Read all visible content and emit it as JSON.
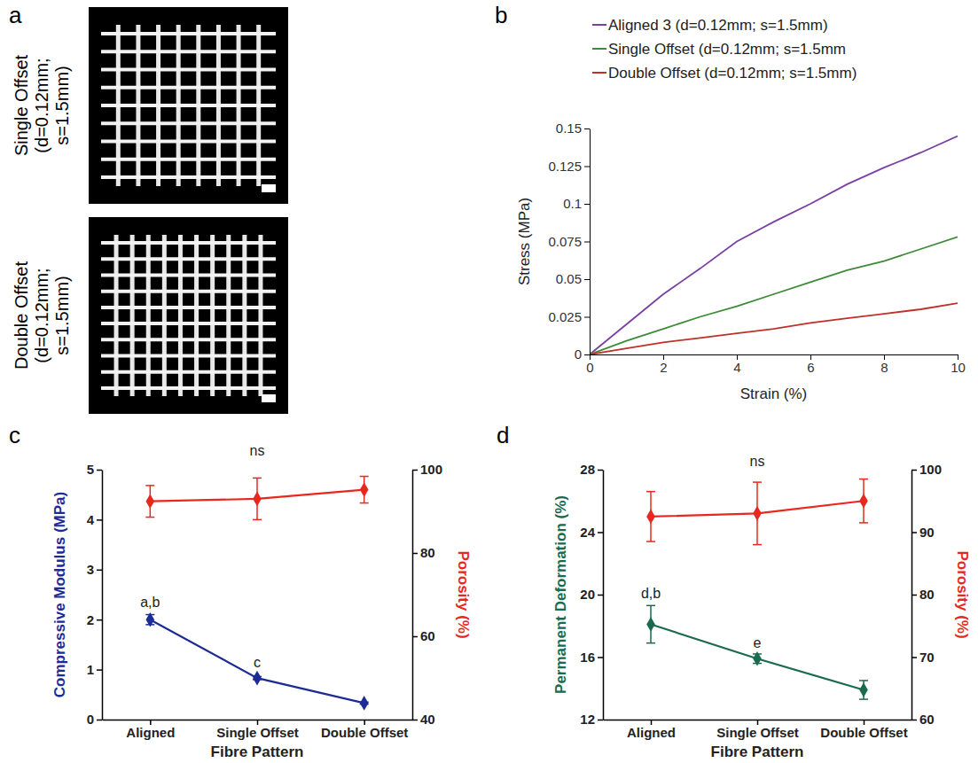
{
  "chart_data": [
    {
      "type": "image",
      "panel_label": "a",
      "labels": [
        "Single Offset (d=0.12mm; s=1.5mm)",
        "Double Offset (d=0.12mm; s=1.5mm)"
      ]
    },
    {
      "type": "line",
      "panel_label": "b",
      "x_label": "Strain (%)",
      "y_label": "Stress (MPa)",
      "x": [
        0,
        1,
        2,
        3,
        4,
        5,
        6,
        7,
        8,
        9,
        10
      ],
      "xlim": [
        0,
        10
      ],
      "xticks": [
        0,
        2,
        4,
        6,
        8,
        10
      ],
      "ylim": [
        0,
        0.15
      ],
      "yticks": [
        0,
        0.025,
        0.05,
        0.075,
        0.1,
        0.125,
        0.15
      ],
      "grid": false,
      "legend": "top",
      "series": [
        {
          "name": "Aligned 3 (d=0.12mm; s=1.5mm)",
          "color": "#7a3fa3",
          "line_style": "solid",
          "values": [
            0,
            0.02,
            0.04,
            0.057,
            0.075,
            0.088,
            0.1,
            0.113,
            0.124,
            0.134,
            0.145
          ]
        },
        {
          "name": "Single Offset (d=0.12mm; s=1.5mm",
          "color": "#3d8b37",
          "line_style": "solid",
          "values": [
            0,
            0.009,
            0.017,
            0.025,
            0.032,
            0.04,
            0.048,
            0.056,
            0.062,
            0.07,
            0.078
          ]
        },
        {
          "name": "Double Offset (d=0.12mm; s=1.5mm)",
          "color": "#c0302b",
          "line_style": "solid",
          "values": [
            0,
            0.004,
            0.008,
            0.011,
            0.014,
            0.017,
            0.021,
            0.024,
            0.027,
            0.03,
            0.034
          ]
        }
      ]
    },
    {
      "type": "line",
      "panel_label": "c",
      "x_label": "Fibre Pattern",
      "y_label": "Compressive Modulus (MPa)",
      "y2_label": "Porosity (%)",
      "categories": [
        "Aligned",
        "Single Offset",
        "Double Offset"
      ],
      "ylim": [
        0,
        5
      ],
      "yticks": [
        0,
        1,
        2,
        3,
        4,
        5
      ],
      "y2lim": [
        40,
        100
      ],
      "y2ticks": [
        40,
        60,
        80,
        100
      ],
      "grid": false,
      "series": [
        {
          "color": "#1d2b96",
          "marker": "diamond",
          "line_style": "solid",
          "values": [
            2.0,
            0.83,
            0.33
          ],
          "errors": [
            0.1,
            0.03,
            0.02
          ]
        },
        {
          "color": "#e8281e",
          "marker": "diamond",
          "line_style": "solid",
          "axis": "y2",
          "values": [
            92.4,
            93.0,
            95.2
          ],
          "errors": [
            3.8,
            5.0,
            3.2
          ]
        }
      ],
      "annotations": [
        {
          "text": "a,b",
          "x": "Aligned",
          "y": 2.25
        },
        {
          "text": "c",
          "x": "Single Offset",
          "y": 1.05
        },
        {
          "text": "ns",
          "x": "Single Offset",
          "y": 103.5,
          "axis": "y2"
        }
      ]
    },
    {
      "type": "line",
      "panel_label": "d",
      "x_label": "Fibre Pattern",
      "y_label": "Permanent Deformation (%)",
      "y2_label": "Porosity (%)",
      "categories": [
        "Aligned",
        "Single Offset",
        "Double Offset"
      ],
      "ylim": [
        12,
        28
      ],
      "yticks": [
        12,
        16,
        20,
        24,
        28
      ],
      "y2lim": [
        60,
        100
      ],
      "y2ticks": [
        60,
        70,
        80,
        90,
        100
      ],
      "grid": false,
      "series": [
        {
          "color": "#1a6b4d",
          "marker": "diamond",
          "line_style": "solid",
          "values": [
            18.1,
            15.9,
            13.9
          ],
          "errors": [
            1.2,
            0.3,
            0.6
          ]
        },
        {
          "color": "#e8281e",
          "marker": "diamond",
          "line_style": "solid",
          "axis": "y2",
          "values": [
            92.5,
            93.0,
            95.0
          ],
          "errors": [
            4.0,
            5.0,
            3.5
          ]
        }
      ],
      "annotations": [
        {
          "text": "d,b",
          "x": "Aligned",
          "y": 19.8
        },
        {
          "text": "e",
          "x": "Single Offset",
          "y": 16.6
        },
        {
          "text": "ns",
          "x": "Single Offset",
          "y": 100.5,
          "axis": "y2"
        }
      ]
    }
  ]
}
